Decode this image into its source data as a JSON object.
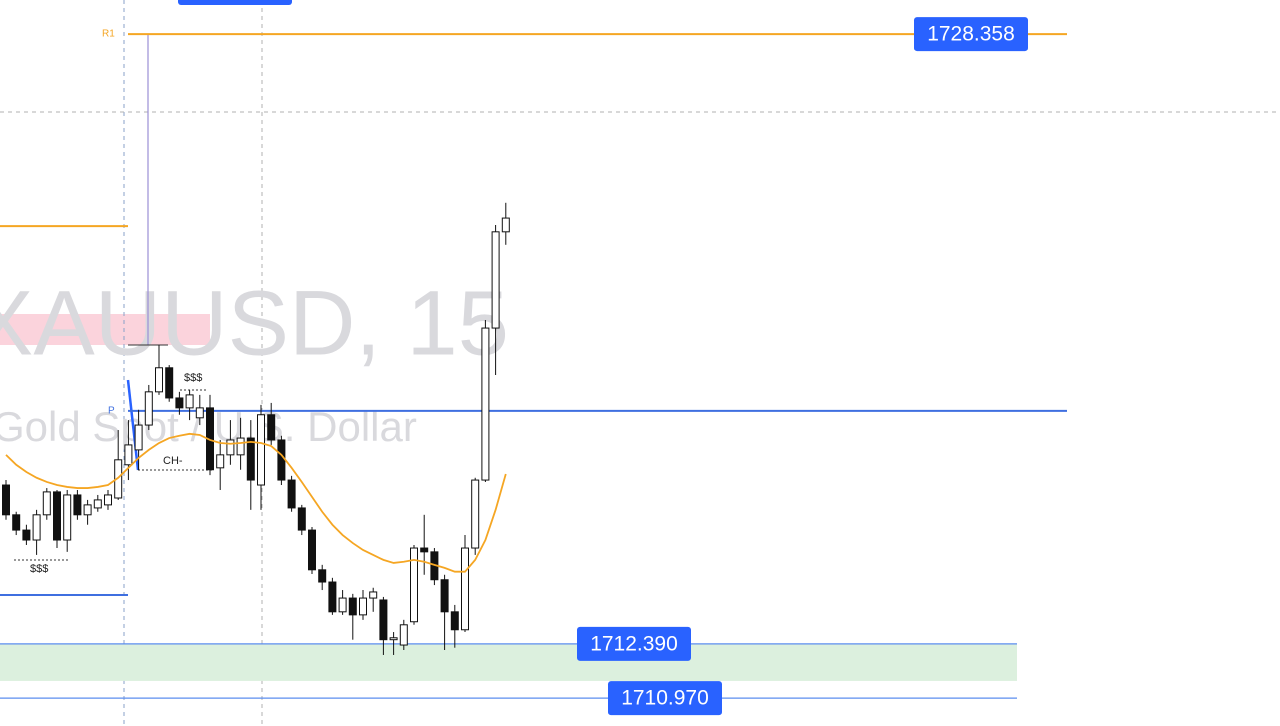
{
  "chart_data": {
    "type": "candlestick",
    "watermark": "XAUUSD, 15",
    "subtitle": "Gold Spot / U.S. Dollar",
    "ylim": [
      1710.24,
      1729.25
    ],
    "categories": [
      null,
      null,
      null,
      null,
      null,
      null,
      null,
      null,
      null,
      null,
      null,
      null,
      null,
      null,
      null,
      null,
      null,
      null,
      null,
      null,
      null,
      null,
      null,
      null,
      null,
      null,
      null,
      null,
      null,
      null,
      null,
      null,
      null,
      null,
      null,
      null,
      null,
      null,
      null,
      null,
      null,
      null,
      null,
      null,
      null,
      null,
      null,
      null,
      null,
      null
    ],
    "open": [
      1716.55,
      1715.77,
      1715.37,
      1715.11,
      1715.77,
      1716.37,
      1715.11,
      1716.29,
      1715.77,
      1715.95,
      1716.03,
      1716.21,
      1717.08,
      1717.47,
      1718.12,
      1718.99,
      1719.62,
      1718.83,
      1718.57,
      1718.31,
      1718.57,
      1717.0,
      1717.34,
      1717.34,
      1717.78,
      1716.55,
      1718.39,
      1717.73,
      1716.68,
      1715.95,
      1715.37,
      1714.33,
      1714.01,
      1713.23,
      1713.59,
      1713.15,
      1713.59,
      1713.54,
      1712.5,
      1712.36,
      1712.97,
      1714.9,
      1714.8,
      1714.07,
      1713.23,
      1712.76,
      1714.9,
      1716.68,
      1720.66,
      1723.18
    ],
    "high": [
      1716.68,
      1715.85,
      1715.51,
      1715.9,
      1716.47,
      1716.42,
      1716.42,
      1716.42,
      1716.16,
      1716.29,
      1716.42,
      1717.99,
      1718.25,
      1718.52,
      1719.17,
      1720.22,
      1719.69,
      1718.99,
      1719.04,
      1718.91,
      1718.91,
      1717.73,
      1718.25,
      1718.31,
      1718.25,
      1718.65,
      1718.7,
      1717.84,
      1716.79,
      1716.03,
      1715.45,
      1714.46,
      1714.12,
      1713.8,
      1713.7,
      1713.8,
      1713.86,
      1713.62,
      1712.7,
      1713.02,
      1714.98,
      1715.77,
      1714.9,
      1714.2,
      1713.41,
      1715.24,
      1716.74,
      1720.87,
      1723.36,
      1723.94
    ],
    "low": [
      1715.64,
      1715.24,
      1714.98,
      1714.72,
      1715.64,
      1714.9,
      1714.8,
      1715.64,
      1715.51,
      1715.85,
      1715.9,
      1716.16,
      1716.68,
      1716.95,
      1717.99,
      1718.91,
      1718.73,
      1718.39,
      1718.25,
      1718.12,
      1716.81,
      1716.42,
      1717.08,
      1716.95,
      1715.9,
      1715.9,
      1717.6,
      1716.55,
      1715.85,
      1715.24,
      1714.22,
      1713.8,
      1713.15,
      1713.15,
      1712.5,
      1713.02,
      1713.23,
      1712.1,
      1712.1,
      1712.23,
      1712.89,
      1714.2,
      1713.93,
      1712.23,
      1712.29,
      1712.7,
      1714.72,
      1716.63,
      1719.43,
      1722.84
    ],
    "close": [
      1715.77,
      1715.37,
      1715.11,
      1715.77,
      1716.37,
      1715.11,
      1716.29,
      1715.77,
      1716.03,
      1716.16,
      1716.29,
      1717.21,
      1717.6,
      1718.12,
      1718.99,
      1719.62,
      1718.83,
      1718.57,
      1718.91,
      1718.57,
      1716.95,
      1717.34,
      1717.73,
      1717.78,
      1716.68,
      1718.39,
      1717.73,
      1716.68,
      1715.95,
      1715.37,
      1714.33,
      1714.01,
      1713.23,
      1713.59,
      1713.15,
      1713.59,
      1713.75,
      1712.5,
      1712.55,
      1712.89,
      1714.9,
      1714.8,
      1714.07,
      1713.23,
      1712.76,
      1714.9,
      1716.68,
      1720.66,
      1723.18,
      1723.54
    ],
    "ma": {
      "color": "#f5a623",
      "values": [
        1717.34,
        1717.08,
        1716.89,
        1716.74,
        1716.63,
        1716.55,
        1716.5,
        1716.47,
        1716.47,
        1716.5,
        1716.55,
        1716.74,
        1717.0,
        1717.26,
        1717.47,
        1717.65,
        1717.78,
        1717.84,
        1717.89,
        1717.86,
        1717.73,
        1717.65,
        1717.63,
        1717.65,
        1717.68,
        1717.65,
        1717.57,
        1717.34,
        1717.0,
        1716.63,
        1716.24,
        1715.85,
        1715.51,
        1715.24,
        1715.03,
        1714.85,
        1714.72,
        1714.59,
        1714.51,
        1714.54,
        1714.59,
        1714.54,
        1714.46,
        1714.38,
        1714.28,
        1714.28,
        1714.59,
        1715.11,
        1715.9,
        1716.84
      ]
    },
    "price_lines": [
      {
        "value": 1728.358,
        "label": "1728.358",
        "color": "#f5a623"
      },
      {
        "value": 1712.39,
        "label": "1712.390",
        "color": "#5b8def"
      },
      {
        "value": 1710.97,
        "label": "1710.970",
        "color": "#5b8def"
      }
    ],
    "levels": [
      {
        "value": 1723.33,
        "color": "#f5a623"
      },
      {
        "value": 1718.49,
        "color": "#3f6fe0"
      },
      {
        "value": 1713.67,
        "color": "#3f6fe0"
      }
    ],
    "zone": {
      "from": 1711.42,
      "to": 1712.39,
      "color": "#dcf0de"
    },
    "annotations": [
      "R1",
      "P",
      "$$$",
      "$$$",
      "CH-"
    ]
  }
}
